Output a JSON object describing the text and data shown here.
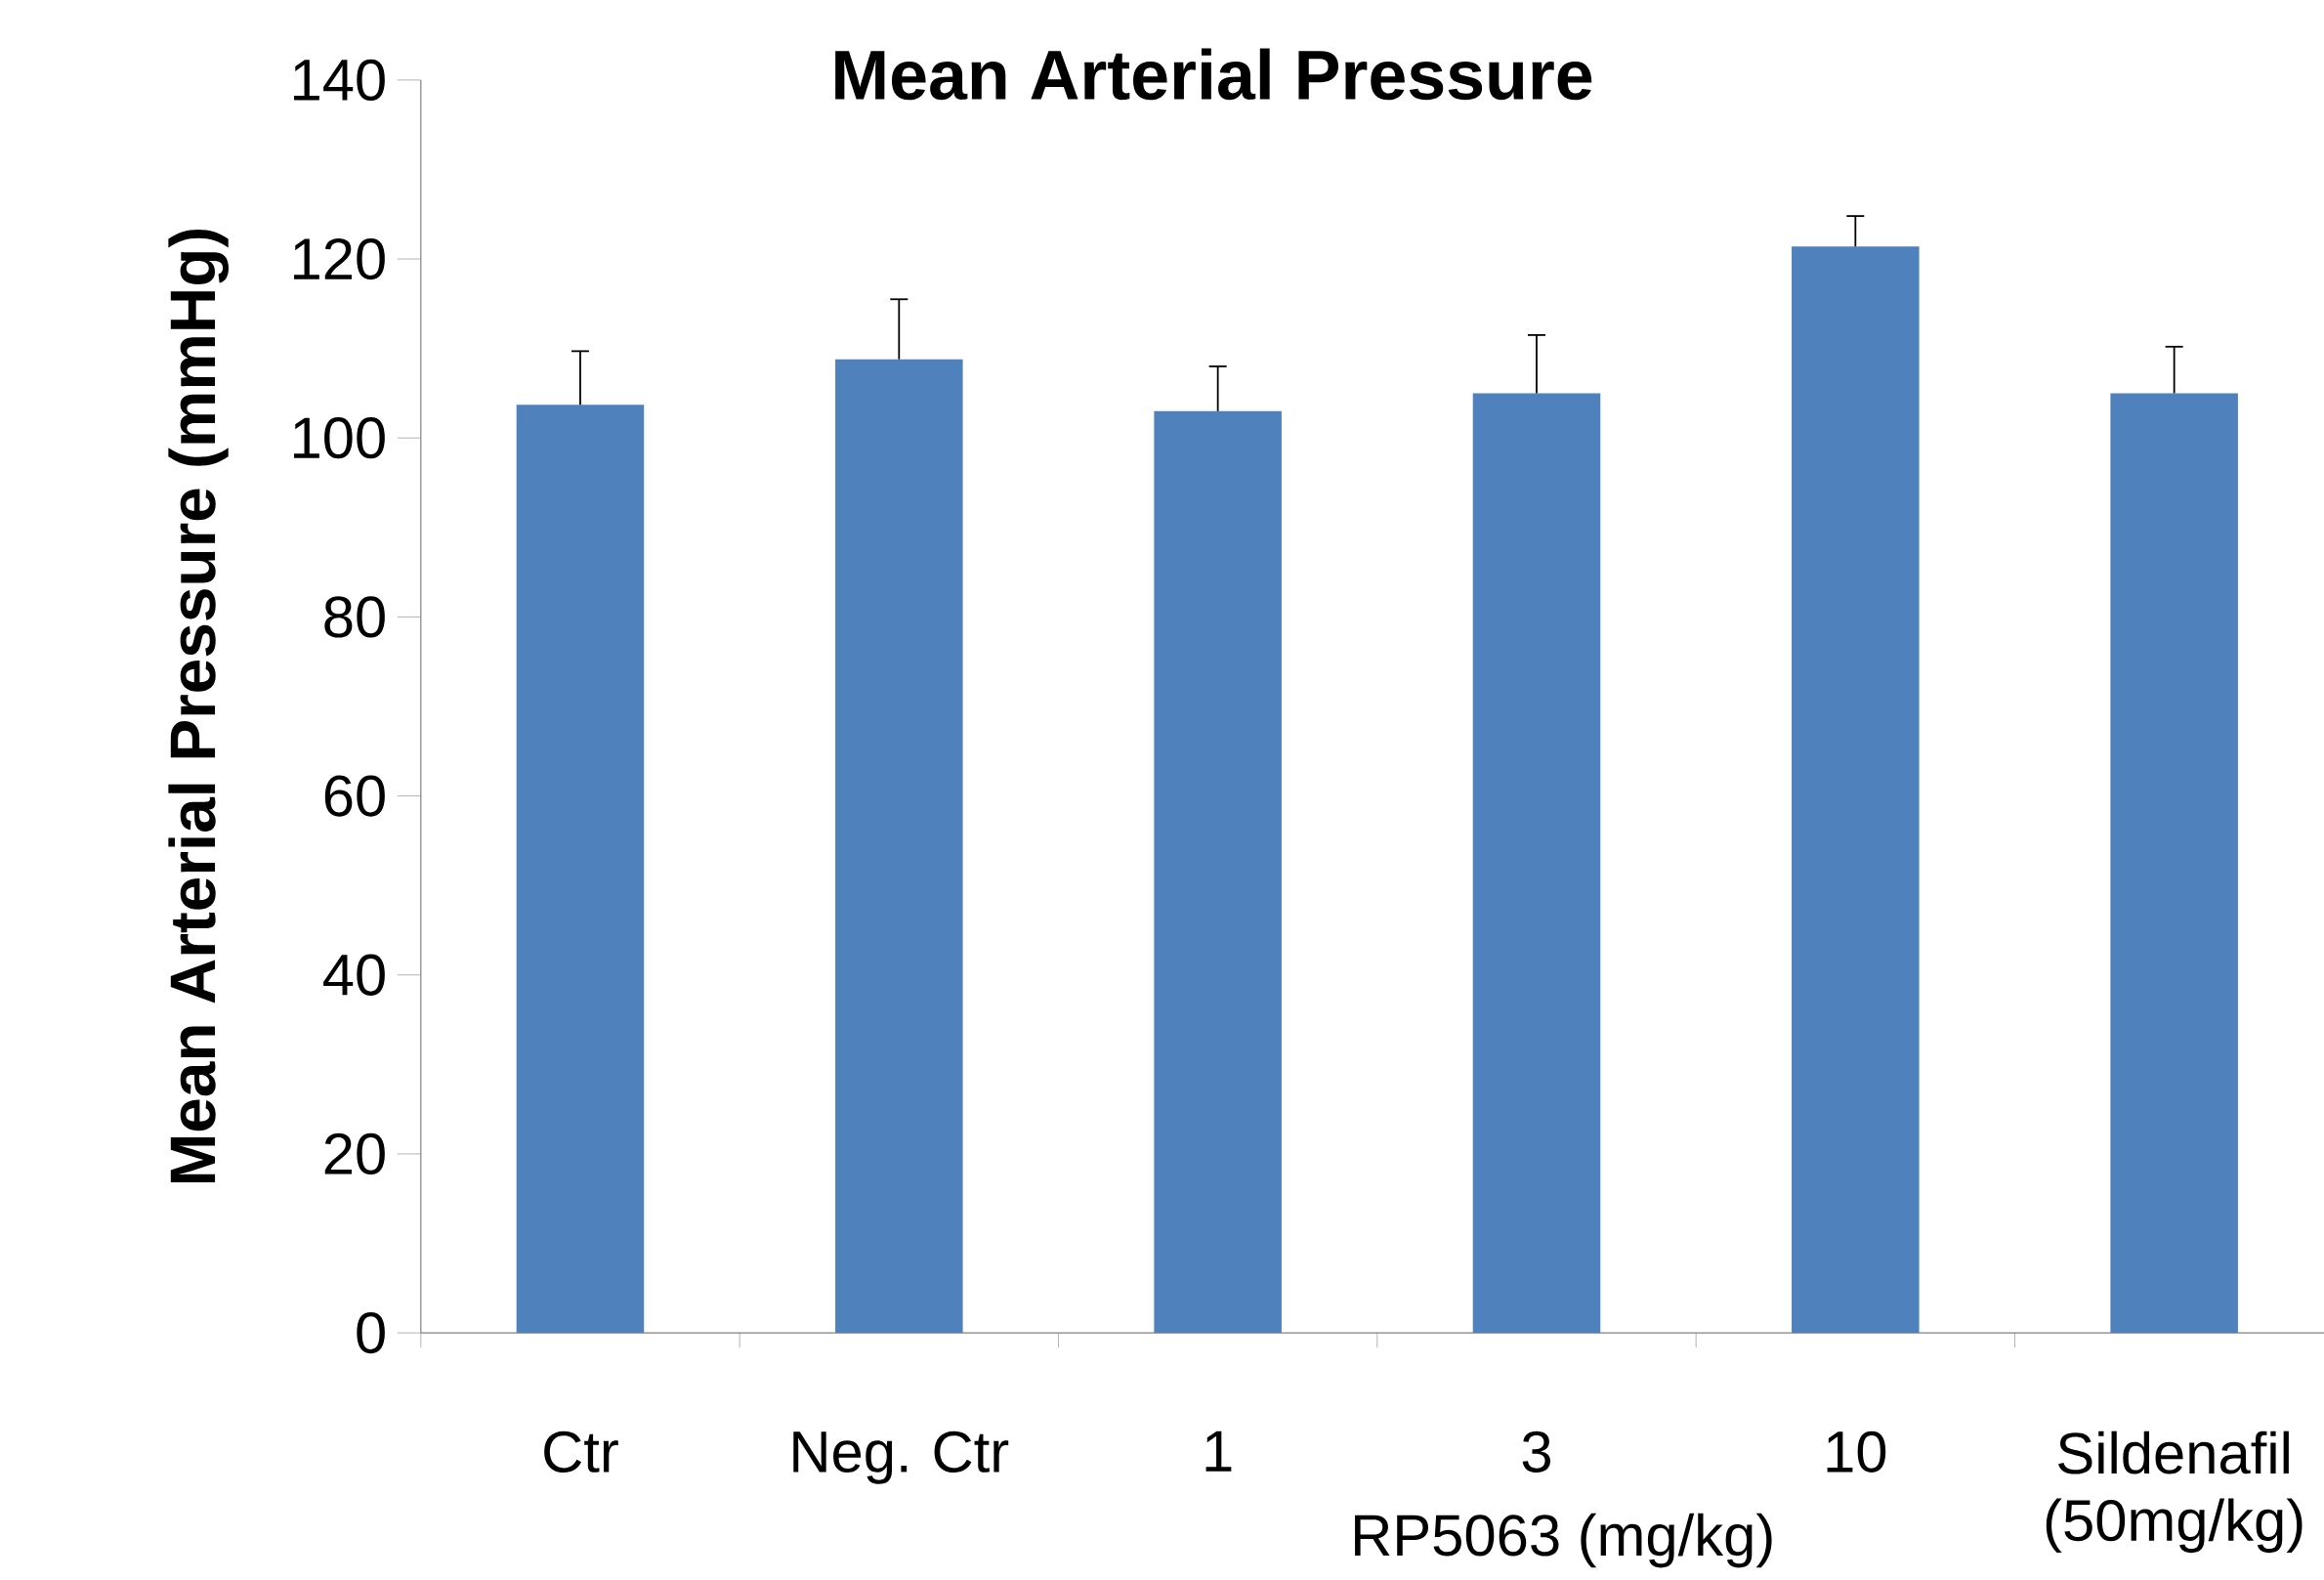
{
  "chart_data": {
    "type": "bar",
    "title": "Mean Arterial Pressure",
    "ylabel": "Mean Arterial Pressure (mmHg)",
    "xlabel": "RP5063 (mg/kg)",
    "categories": [
      "Ctr",
      "Neg. Ctr",
      "1",
      "3",
      "10",
      "Sildenafil (50mg/kg)"
    ],
    "values": [
      103.7,
      108.8,
      103.0,
      105.0,
      121.4,
      105.0
    ],
    "errors": [
      [
        103.7,
        109.7
      ],
      [
        108.8,
        115.5
      ],
      [
        103.0,
        108.0
      ],
      [
        105.0,
        111.5
      ],
      [
        121.4,
        124.8
      ],
      [
        105.0,
        110.2
      ]
    ],
    "color": "#4f81bd",
    "ylim": [
      0,
      140
    ],
    "yticks": [
      0,
      20,
      40,
      60,
      80,
      100,
      120,
      140
    ],
    "grid": false
  }
}
